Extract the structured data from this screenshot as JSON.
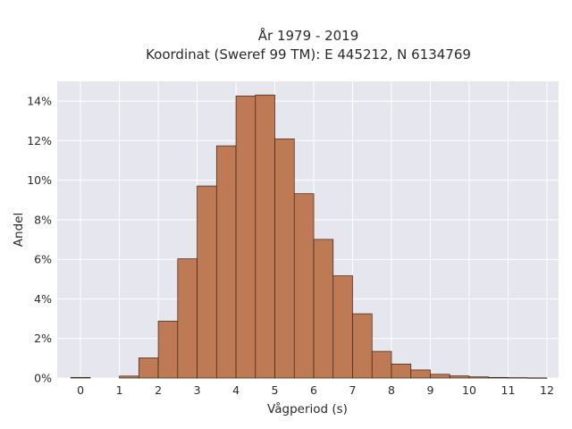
{
  "chart_data": {
    "type": "bar",
    "title_line1": "År 1979 - 2019",
    "title_line2": "Koordinat (Sweref 99 TM): E 445212, N 6134769",
    "xlabel": "Vågperiod (s)",
    "ylabel": "Andel",
    "xlim": [
      -0.6,
      12.3
    ],
    "ylim": [
      0,
      0.15
    ],
    "x_ticks": [
      0,
      1,
      2,
      3,
      4,
      5,
      6,
      7,
      8,
      9,
      10,
      11,
      12
    ],
    "x_tick_labels": [
      "0",
      "1",
      "2",
      "3",
      "4",
      "5",
      "6",
      "7",
      "8",
      "9",
      "10",
      "11",
      "12"
    ],
    "y_ticks": [
      0,
      0.02,
      0.04,
      0.06,
      0.08,
      0.1,
      0.12,
      0.14
    ],
    "y_tick_labels": [
      "0%",
      "2%",
      "4%",
      "6%",
      "8%",
      "10%",
      "12%",
      "14%"
    ],
    "grid": true,
    "bin_width": 0.5,
    "bin_starts": [
      -0.25,
      1.0,
      1.5,
      2.0,
      2.5,
      3.0,
      3.5,
      4.0,
      4.5,
      5.0,
      5.5,
      6.0,
      6.5,
      7.0,
      7.5,
      8.0,
      8.5,
      9.0,
      9.5,
      10.0,
      10.5,
      11.0,
      11.5
    ],
    "values": [
      0.0003,
      0.001,
      0.0102,
      0.0288,
      0.0603,
      0.0971,
      0.1174,
      0.1426,
      0.1431,
      0.1209,
      0.0932,
      0.0701,
      0.0517,
      0.0325,
      0.0135,
      0.0071,
      0.0041,
      0.0019,
      0.0011,
      0.0006,
      0.0003,
      0.0002,
      0.0001
    ],
    "bar_color": "#bd7a55",
    "edge_color": "#3f2418",
    "plot_background": "#e6e6ef",
    "grid_color": "#ffffff"
  }
}
